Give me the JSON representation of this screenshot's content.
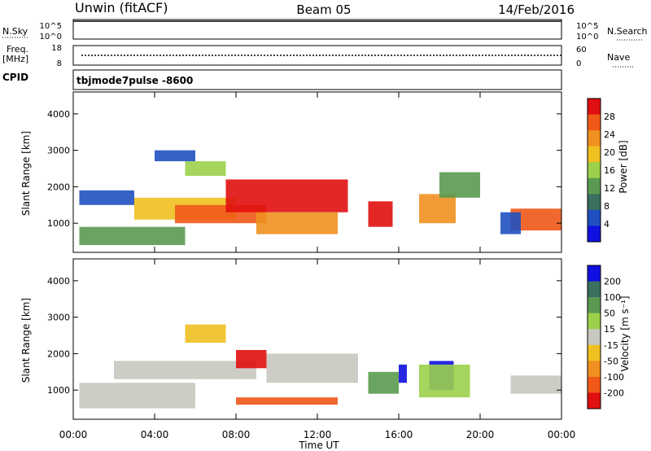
{
  "header": {
    "station": "Unwin (fitACF)",
    "beam": "Beam 05",
    "date": "14/Feb/2016"
  },
  "left_labels": {
    "nsky": "N.Sky",
    "freq_line1": "Freq.",
    "freq_line2": "[MHz]",
    "cpid": "CPID",
    "nsky_top": "10^5",
    "nsky_bottom": "10^0",
    "freq_top": "18",
    "freq_bottom": "8"
  },
  "right_labels": {
    "nsearch": "N.Search",
    "nave": "Nave",
    "nsearch_top": "10^5",
    "nsearch_bottom": "10^0",
    "nave_top": "60",
    "nave_bottom": "0"
  },
  "cpid_text": "tbjmode7pulse -8600",
  "colors": {
    "power_scale": [
      "#1010e0",
      "#2050c0",
      "#3a7060",
      "#5a9a50",
      "#9bd04a",
      "#f0c020",
      "#f09020",
      "#f05818",
      "#e01010"
    ],
    "velocity_scale": [
      "#e01010",
      "#f05818",
      "#f09020",
      "#f0c020",
      "#c8c8c0",
      "#9bd04a",
      "#5a9a50",
      "#3a7060",
      "#1010e0"
    ]
  },
  "chart_data": [
    {
      "type": "heatmap",
      "title": "Power",
      "ylabel": "Slant Range [km]",
      "ylim": [
        200,
        4600
      ],
      "yticks": [
        "1000",
        "2000",
        "3000",
        "4000"
      ],
      "xlim_hours": [
        0,
        24
      ],
      "colorbar": {
        "label": "Power [dB]",
        "ticks": [
          "4",
          "8",
          "12",
          "16",
          "20",
          "24",
          "28"
        ]
      },
      "regions": [
        {
          "t0": 0.3,
          "t1": 5.5,
          "r0": 400,
          "r1": 900,
          "level": 3
        },
        {
          "t0": 0.3,
          "t1": 3.0,
          "r0": 1500,
          "r1": 1900,
          "level": 1
        },
        {
          "t0": 3.0,
          "t1": 8.0,
          "r0": 1100,
          "r1": 1700,
          "level": 5
        },
        {
          "t0": 5.0,
          "t1": 9.5,
          "r0": 1000,
          "r1": 1500,
          "level": 7
        },
        {
          "t0": 7.5,
          "t1": 13.5,
          "r0": 1300,
          "r1": 2200,
          "level": 8
        },
        {
          "t0": 9.0,
          "t1": 13.0,
          "r0": 700,
          "r1": 1300,
          "level": 6
        },
        {
          "t0": 5.5,
          "t1": 7.5,
          "r0": 2300,
          "r1": 2700,
          "level": 4
        },
        {
          "t0": 4.0,
          "t1": 6.0,
          "r0": 2700,
          "r1": 3000,
          "level": 1
        },
        {
          "t0": 14.5,
          "t1": 15.7,
          "r0": 900,
          "r1": 1600,
          "level": 8
        },
        {
          "t0": 17.0,
          "t1": 18.8,
          "r0": 1000,
          "r1": 1800,
          "level": 6
        },
        {
          "t0": 18.0,
          "t1": 20.0,
          "r0": 1700,
          "r1": 2400,
          "level": 3
        },
        {
          "t0": 21.5,
          "t1": 24.0,
          "r0": 800,
          "r1": 1400,
          "level": 7
        },
        {
          "t0": 21.0,
          "t1": 22.0,
          "r0": 700,
          "r1": 1300,
          "level": 1
        }
      ]
    },
    {
      "type": "heatmap",
      "title": "Velocity",
      "ylabel": "Slant Range [km]",
      "ylim": [
        200,
        4600
      ],
      "yticks": [
        "1000",
        "2000",
        "3000",
        "4000"
      ],
      "xlim_hours": [
        0,
        24
      ],
      "xticks": [
        "00:00",
        "04:00",
        "08:00",
        "12:00",
        "16:00",
        "20:00",
        "00:00"
      ],
      "xlabel": "Time UT",
      "colorbar": {
        "label": "Velocity [m s⁻¹]",
        "ticks": [
          "200",
          "100",
          "50",
          "15",
          "-15",
          "-50",
          "-100",
          "-200"
        ]
      },
      "regions": [
        {
          "t0": 0.3,
          "t1": 6.0,
          "r0": 500,
          "r1": 1200,
          "level": 4
        },
        {
          "t0": 2.0,
          "t1": 9.0,
          "r0": 1300,
          "r1": 1800,
          "level": 4
        },
        {
          "t0": 8.0,
          "t1": 9.5,
          "r0": 1600,
          "r1": 2100,
          "level": 0
        },
        {
          "t0": 8.0,
          "t1": 13.0,
          "r0": 600,
          "r1": 800,
          "level": 1
        },
        {
          "t0": 9.5,
          "t1": 14.0,
          "r0": 1200,
          "r1": 2000,
          "level": 4
        },
        {
          "t0": 14.5,
          "t1": 16.0,
          "r0": 900,
          "r1": 1500,
          "level": 6
        },
        {
          "t0": 16.0,
          "t1": 16.4,
          "r0": 1200,
          "r1": 1700,
          "level": 8
        },
        {
          "t0": 17.5,
          "t1": 18.7,
          "r0": 1000,
          "r1": 1800,
          "level": 8
        },
        {
          "t0": 17.0,
          "t1": 19.5,
          "r0": 800,
          "r1": 1700,
          "level": 5
        },
        {
          "t0": 21.5,
          "t1": 24.0,
          "r0": 900,
          "r1": 1400,
          "level": 4
        },
        {
          "t0": 5.5,
          "t1": 7.5,
          "r0": 2300,
          "r1": 2800,
          "level": 3
        }
      ]
    }
  ]
}
